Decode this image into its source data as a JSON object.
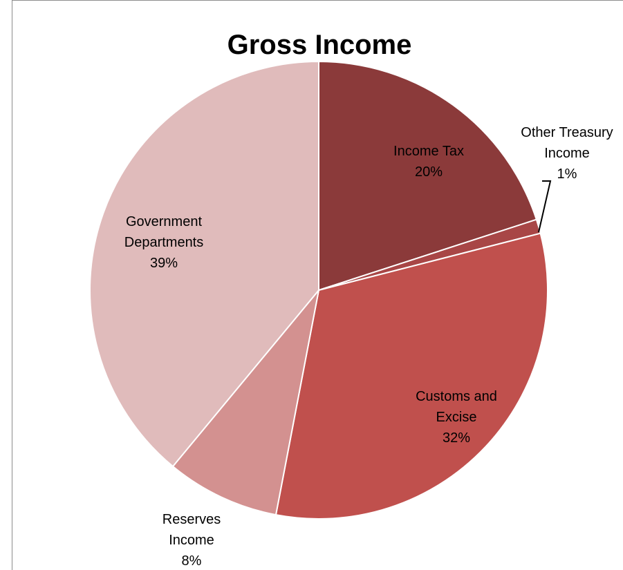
{
  "chart_data": {
    "type": "pie",
    "title": "Gross Income",
    "slices": [
      {
        "label_lines": [
          "Income Tax"
        ],
        "value": 20,
        "pct_label": "20%",
        "color": "#8b3a3a"
      },
      {
        "label_lines": [
          "Other Treasury",
          "Income"
        ],
        "value": 1,
        "pct_label": "1%",
        "color": "#a84646"
      },
      {
        "label_lines": [
          "Customs and",
          "Excise"
        ],
        "value": 32,
        "pct_label": "32%",
        "color": "#c0504d"
      },
      {
        "label_lines": [
          "Reserves",
          "Income"
        ],
        "value": 8,
        "pct_label": "8%",
        "color": "#d39190"
      },
      {
        "label_lines": [
          "Government",
          "Departments"
        ],
        "value": 39,
        "pct_label": "39%",
        "color": "#e0bbbb"
      }
    ],
    "start_angle_deg": 0,
    "direction": "clockwise",
    "legend": "none"
  }
}
